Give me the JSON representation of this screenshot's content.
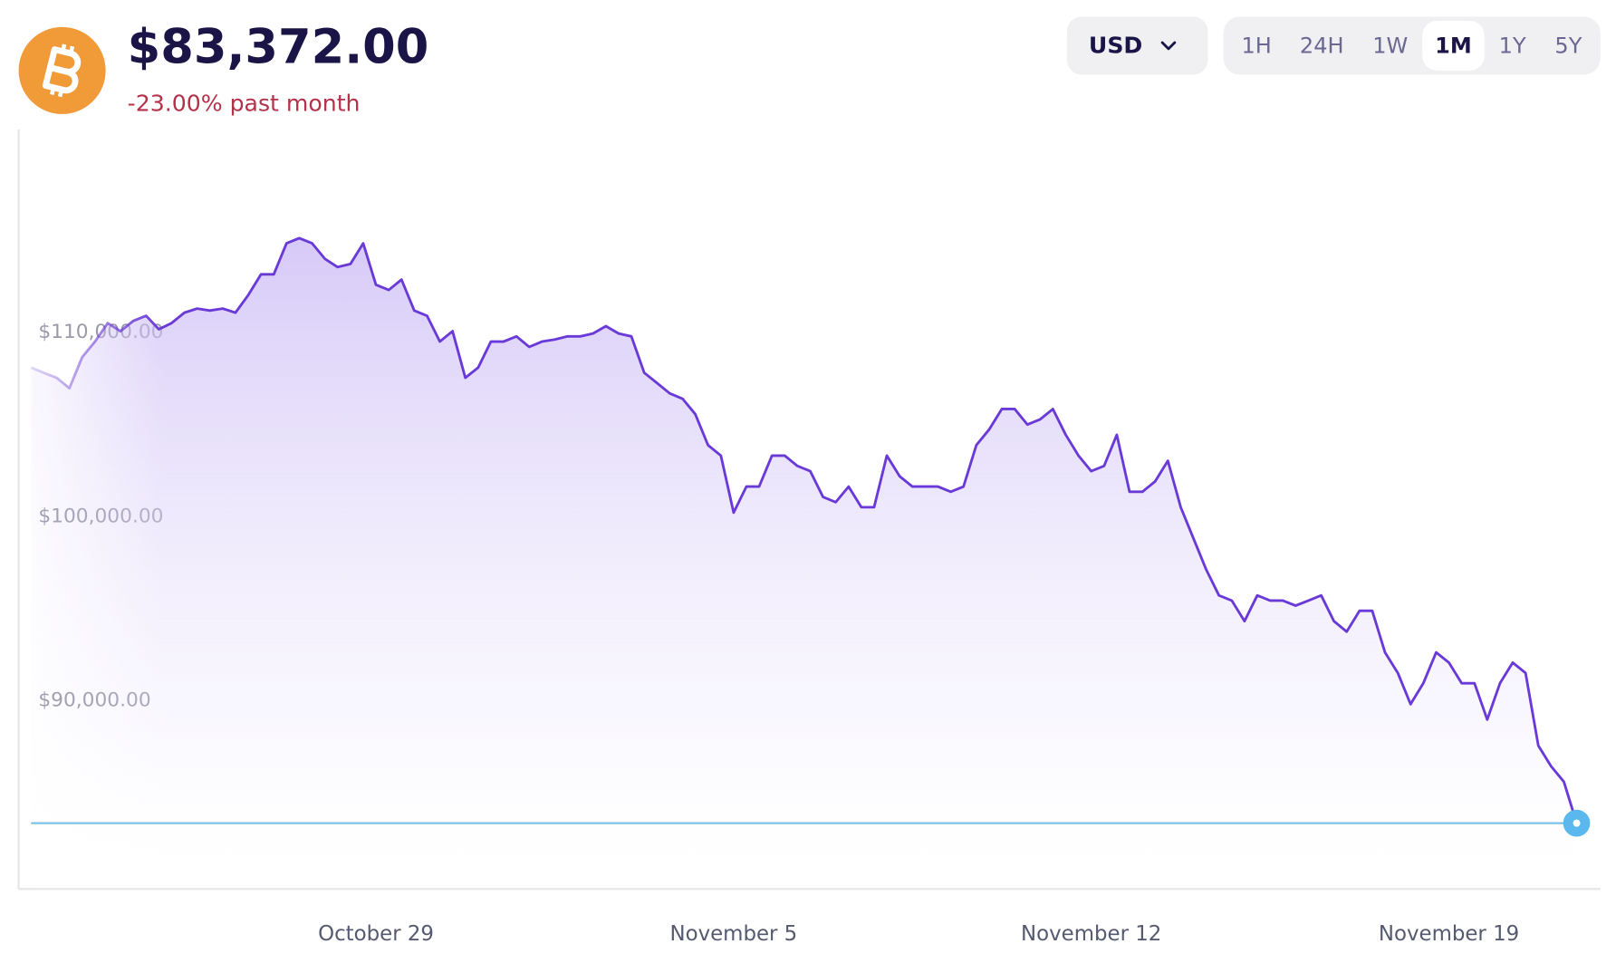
{
  "header": {
    "price": "$83,372.00",
    "change": "-23.00% past month"
  },
  "controls": {
    "currency": "USD",
    "ranges": [
      "1H",
      "24H",
      "1W",
      "1M",
      "1Y",
      "5Y"
    ],
    "selected": "1M"
  },
  "chart_data": {
    "type": "line",
    "color": "#6a3ad8",
    "values": [
      108090,
      107810,
      107530,
      106970,
      108650,
      109500,
      110500,
      110060,
      110620,
      110900,
      110170,
      110500,
      111070,
      111290,
      111180,
      111290,
      111070,
      112020,
      113150,
      113150,
      114830,
      115110,
      114830,
      113990,
      113540,
      113710,
      114830,
      112580,
      112300,
      112860,
      111180,
      110900,
      109500,
      110060,
      107530,
      108090,
      109500,
      109500,
      109780,
      109210,
      109500,
      109610,
      109780,
      109780,
      109940,
      110340,
      109940,
      109780,
      107810,
      107250,
      106690,
      106400,
      105560,
      103880,
      103310,
      100220,
      101630,
      101630,
      103310,
      103310,
      102750,
      102470,
      101070,
      100790,
      101630,
      100510,
      100510,
      103310,
      102190,
      101630,
      101630,
      101630,
      101350,
      101630,
      103880,
      104720,
      105840,
      105840,
      105000,
      105280,
      105840,
      104440,
      103310,
      102470,
      102750,
      104440,
      101350,
      101350,
      101910,
      103030,
      100510,
      98820,
      97130,
      95730,
      95450,
      94330,
      95730,
      95450,
      95450,
      95170,
      95450,
      95730,
      94330,
      93760,
      94890,
      94890,
      92640,
      91520,
      89830,
      90960,
      92640,
      92080,
      90960,
      90960,
      88990,
      90960,
      92080,
      91520,
      87580,
      86460,
      85620,
      83372
    ],
    "xlim": [
      0,
      121
    ],
    "xticks": [
      {
        "value": 27,
        "label": "October 29"
      },
      {
        "value": 55,
        "label": "November 5"
      },
      {
        "value": 83,
        "label": "November 12"
      },
      {
        "value": 111,
        "label": "November 19"
      }
    ],
    "ylim": [
      79800,
      121000
    ],
    "yticks": [
      {
        "value": 90000,
        "label": "$90,000.00"
      },
      {
        "value": 100000,
        "label": "$100,000.00"
      },
      {
        "value": 110000,
        "label": "$110,000.00"
      }
    ]
  }
}
